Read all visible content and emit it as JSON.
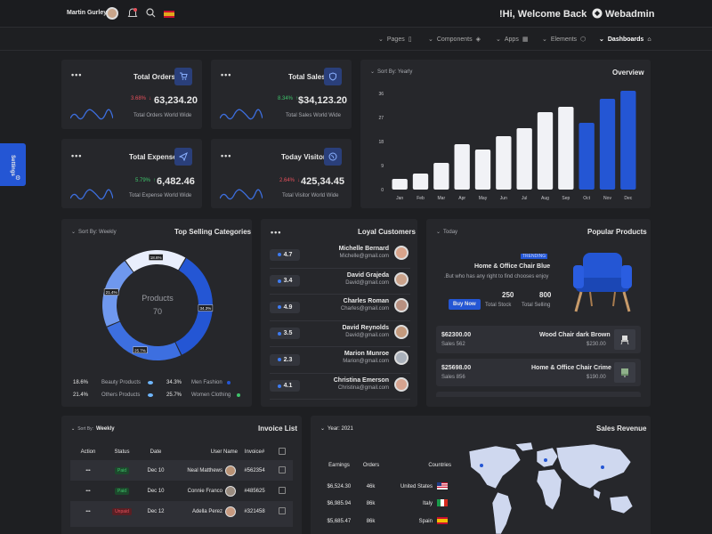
{
  "header": {
    "user_name": "Martin Gurley",
    "welcome": "!Hi, Welcome Back",
    "brand": "Webadmin"
  },
  "nav": {
    "items": [
      {
        "label": "Pages"
      },
      {
        "label": "Components"
      },
      {
        "label": "Apps"
      },
      {
        "label": "Elements"
      },
      {
        "label": "Dashboards"
      }
    ]
  },
  "settings_tab": "Settings",
  "stats": [
    {
      "title": "Total Orders",
      "value": "63,234.20",
      "change": "3.68%",
      "dir": "down",
      "sub": "Total Orders World Wide"
    },
    {
      "title": "Total Sales",
      "value": "$34,123.20",
      "change": "8.34%",
      "dir": "up",
      "sub": "Total Sales World Wide"
    },
    {
      "title": "Total Expense",
      "value": "6,482.46",
      "change": "5.79%",
      "dir": "up",
      "sub": "Total Expense World Wide"
    },
    {
      "title": "Today Visitor",
      "value": "425,34.45",
      "change": "2.64%",
      "dir": "down",
      "sub": "Total Visitor World Wide"
    }
  ],
  "overview": {
    "sort": "Sort By: Yearly",
    "title": "Overview"
  },
  "chart_data": {
    "type": "bar",
    "title": "Overview",
    "categories": [
      "Jan",
      "Feb",
      "Mar",
      "Apr",
      "May",
      "Jun",
      "Jul",
      "Aug",
      "Sep",
      "Oct",
      "Nov",
      "Dec"
    ],
    "values": [
      4,
      6,
      10,
      17,
      15,
      20,
      23,
      29,
      31,
      25,
      34,
      37
    ],
    "highlight": [
      "Oct",
      "Nov",
      "Dec"
    ],
    "yticks": [
      0,
      9,
      18,
      27,
      36
    ],
    "ylim": [
      0,
      40
    ],
    "colors": {
      "normal": "#f1f2f6",
      "highlight": "#2456d4"
    }
  },
  "top_selling": {
    "sort": "Sort By: Weekly",
    "title": "Top Selling Categories",
    "center_label": "Products",
    "center_value": "70",
    "slices": [
      {
        "label": "Men Fashion",
        "value": 34.3,
        "color": "#2456d4"
      },
      {
        "label": "Women Clothing",
        "value": 25.7,
        "color": "#3d6fe0"
      },
      {
        "label": "Others Products",
        "value": 21.4,
        "color": "#6f98ee"
      },
      {
        "label": "Beauty Products",
        "value": 18.6,
        "color": "#e9eefc"
      }
    ],
    "legend": [
      {
        "pct": "18.6%",
        "label": "Beauty Products"
      },
      {
        "pct": "34.3%",
        "label": "Men Fashion"
      },
      {
        "pct": "21.4%",
        "label": "Others Products"
      },
      {
        "pct": "25.7%",
        "label": "Women Clothing"
      }
    ],
    "slice_labels": [
      "34.3%",
      "25.7%",
      "21.4%",
      "18.6%"
    ]
  },
  "customers": {
    "title": "Loyal Customers",
    "list": [
      {
        "name": "Michelle Bernard",
        "email": "Michelle@gmail.com",
        "rating": "4.7"
      },
      {
        "name": "David Grajeda",
        "email": "David@gmail.com",
        "rating": "3.4"
      },
      {
        "name": "Charles Roman",
        "email": "Charles@gmail.com",
        "rating": "4.9"
      },
      {
        "name": "David Reynolds",
        "email": "David@gmail.com",
        "rating": "3.5"
      },
      {
        "name": "Marion Munroe",
        "email": "Marion@gmail.com",
        "rating": "2.3"
      },
      {
        "name": "Christina Emerson",
        "email": "Christina@gmail.com",
        "rating": "4.1"
      }
    ]
  },
  "popular": {
    "sort": "Today",
    "title": "Popular Products",
    "tag": "TRENDING",
    "name": "Home & Office Chair Blue",
    "desc": ".But who has any right to find chooses enjoy",
    "btn": "Buy Now",
    "stock": "250",
    "stock_label": "Total Stock",
    "selling": "800",
    "selling_label": "Total Selling",
    "items": [
      {
        "price": "$62300.00",
        "sales": "Sales 562",
        "name": "Wood Chair dark Brown",
        "amount": "$230.00"
      },
      {
        "price": "$25698.00",
        "sales": "Sales 856",
        "name": "Home & Office Chair Crime",
        "amount": "$190.00"
      }
    ]
  },
  "invoice": {
    "sort_prefix": "Sort By:",
    "sort": "Weekly",
    "title": "Invoice List",
    "headers": [
      "Action",
      "Status",
      "Date",
      "User Name",
      "Invoice#"
    ],
    "rows": [
      {
        "action": "•••",
        "status": "Paid",
        "date": "Dec 10",
        "user": "Neal Matthews",
        "invoice": "#562354"
      },
      {
        "action": "•••",
        "status": "Paid",
        "date": "Dec 10",
        "user": "Connie Franco",
        "invoice": "#485625"
      },
      {
        "action": "•••",
        "status": "Unpaid",
        "date": "Dec 12",
        "user": "Adella Perez",
        "invoice": "#321458"
      }
    ]
  },
  "revenue": {
    "year": "Year: 2021",
    "title": "Sales Revenue",
    "headers": [
      "Earnings",
      "Orders",
      "Countries"
    ],
    "rows": [
      {
        "earnings": "$6,524.30",
        "orders": "46k",
        "country": "United States"
      },
      {
        "earnings": "$6,985.94",
        "orders": "86k",
        "country": "Italy"
      },
      {
        "earnings": "$5,685.47",
        "orders": "86k",
        "country": "Spain"
      }
    ]
  }
}
